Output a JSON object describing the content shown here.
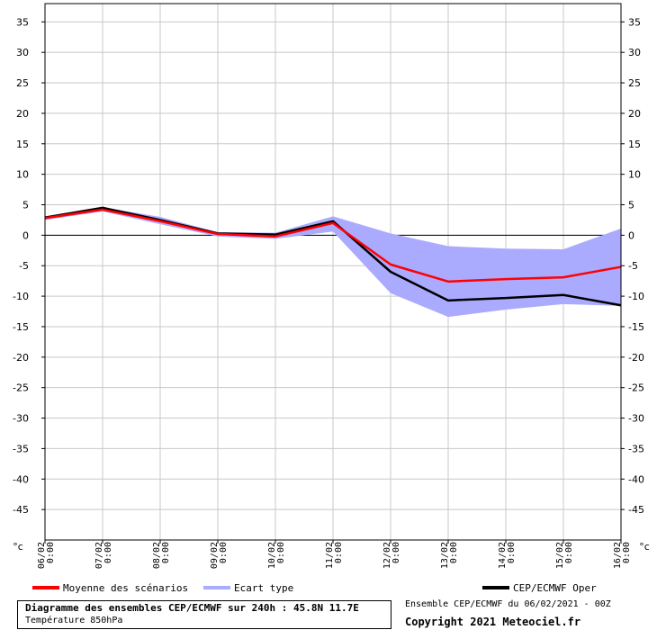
{
  "chart_data": {
    "type": "line",
    "x": [
      "06/02 0:00",
      "07/02 0:00",
      "08/02 0:00",
      "09/02 0:00",
      "10/02 0:00",
      "11/02 0:00",
      "12/02 0:00",
      "13/02 0:00",
      "14/02 0:00",
      "15/02 0:00",
      "16/02 0:00"
    ],
    "x_date_labels": [
      "06/02",
      "07/02",
      "08/02",
      "09/02",
      "10/02",
      "11/02",
      "12/02",
      "13/02",
      "14/02",
      "15/02",
      "16/02"
    ],
    "x_time_labels": [
      "0:00",
      "0:00",
      "0:00",
      "0:00",
      "0:00",
      "0:00",
      "0:00",
      "0:00",
      "0:00",
      "0:00",
      "0:00"
    ],
    "ylim": [
      -50,
      38
    ],
    "y_ticks": [
      35,
      30,
      25,
      20,
      15,
      10,
      5,
      0,
      -5,
      -10,
      -15,
      -20,
      -25,
      -30,
      -35,
      -40,
      -45
    ],
    "yunit": "°c",
    "grid": true,
    "zero_line": true,
    "series": [
      {
        "name": "Moyenne des scénarios",
        "color": "#ff0000",
        "values": [
          2.8,
          4.2,
          2.3,
          0.2,
          -0.2,
          2.0,
          -4.8,
          -7.6,
          -7.2,
          -6.9,
          -5.2
        ]
      },
      {
        "name": "CEP/ECMWF Oper",
        "color": "#000000",
        "values": [
          2.9,
          4.5,
          2.5,
          0.3,
          0.1,
          2.3,
          -6.0,
          -10.7,
          -10.3,
          -9.8,
          -11.5
        ]
      }
    ],
    "band": {
      "name": "Ecart type",
      "color": "#aaaaff",
      "upper": [
        3.1,
        4.6,
        3.0,
        0.5,
        0.4,
        3.1,
        0.3,
        -1.8,
        -2.2,
        -2.3,
        1.1
      ],
      "lower": [
        2.5,
        3.9,
        1.8,
        -0.2,
        -0.6,
        0.6,
        -9.5,
        -13.4,
        -12.2,
        -11.3,
        -11.6
      ]
    },
    "legend": [
      "Moyenne des scénarios",
      "Ecart type",
      "CEP/ECMWF Oper"
    ],
    "title": "Diagramme des ensembles CEP/ECMWF sur 240h : 45.8N 11.7E",
    "subtitle": "Température 850hPa"
  },
  "footer": {
    "run_info": "Ensemble CEP/ECMWF du 06/02/2021 - 00Z",
    "copyright": "Copyright 2021 Meteociel.fr"
  }
}
